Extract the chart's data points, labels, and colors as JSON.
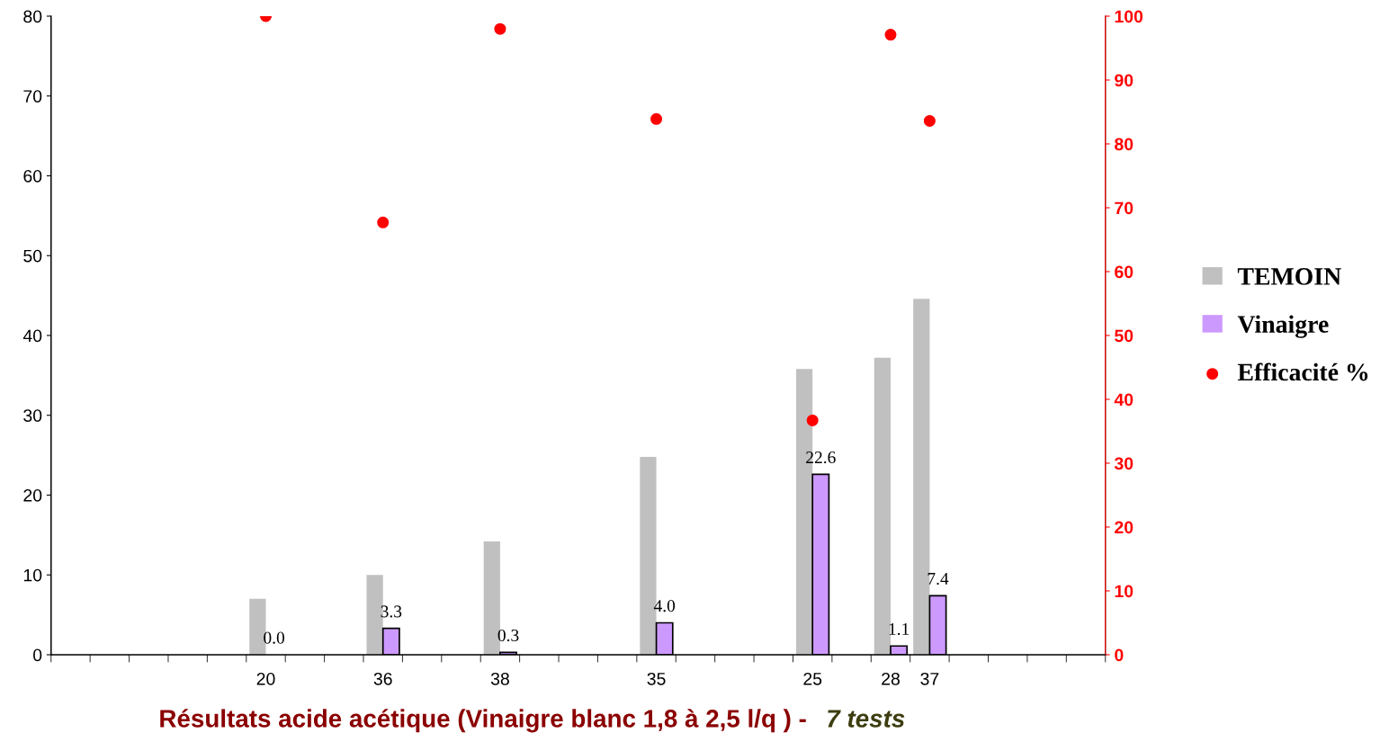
{
  "chart_data": {
    "type": "bar",
    "xlabel": "Résultats acide acétique (Vinaigre blanc 1,8 à 2,5 l/q ) -",
    "annotations": [
      "7 tests"
    ],
    "categories": [
      null,
      null,
      null,
      null,
      null,
      "20",
      null,
      null,
      "36",
      null,
      null,
      "38",
      null,
      null,
      null,
      "35",
      null,
      null,
      null,
      "25",
      null,
      "28",
      "37",
      null,
      null,
      null,
      null
    ],
    "series": [
      {
        "name": "TEMOIN",
        "color": "#c0c0c0",
        "values": [
          null,
          null,
          null,
          null,
          null,
          7.0,
          null,
          null,
          10.0,
          null,
          null,
          14.2,
          null,
          null,
          null,
          24.8,
          null,
          null,
          null,
          35.8,
          null,
          37.2,
          44.6,
          null,
          null,
          null,
          null
        ]
      },
      {
        "name": "Vinaigre",
        "color": "#cc99ff",
        "values": [
          null,
          null,
          null,
          null,
          null,
          0.0,
          null,
          null,
          3.3,
          null,
          null,
          0.3,
          null,
          null,
          null,
          4.0,
          null,
          null,
          null,
          22.6,
          null,
          1.1,
          7.4,
          null,
          null,
          null,
          null
        ],
        "value_labels": [
          null,
          null,
          null,
          null,
          null,
          "0.0",
          null,
          null,
          "3.3",
          null,
          null,
          "0.3",
          null,
          null,
          null,
          "4.0",
          null,
          null,
          null,
          "22.6",
          null,
          "1.1",
          "7.4",
          null,
          null,
          null,
          null
        ]
      },
      {
        "name": "Efficacité %",
        "type": "scatter",
        "axis": "y2",
        "color": "#ff0000",
        "values": [
          null,
          null,
          null,
          null,
          null,
          100,
          null,
          null,
          67.7,
          null,
          null,
          98,
          null,
          null,
          null,
          83.9,
          null,
          null,
          null,
          36.7,
          null,
          97.1,
          83.6,
          null,
          null,
          null,
          null
        ]
      }
    ],
    "ylim": [
      0,
      80
    ],
    "yticks": [
      0,
      10,
      20,
      30,
      40,
      50,
      60,
      70,
      80
    ],
    "y2lim": [
      0,
      100
    ],
    "y2ticks": [
      0,
      10,
      20,
      30,
      40,
      50,
      60,
      70,
      80,
      90,
      100
    ],
    "legend": "right",
    "grid": false,
    "marker": "circle"
  }
}
